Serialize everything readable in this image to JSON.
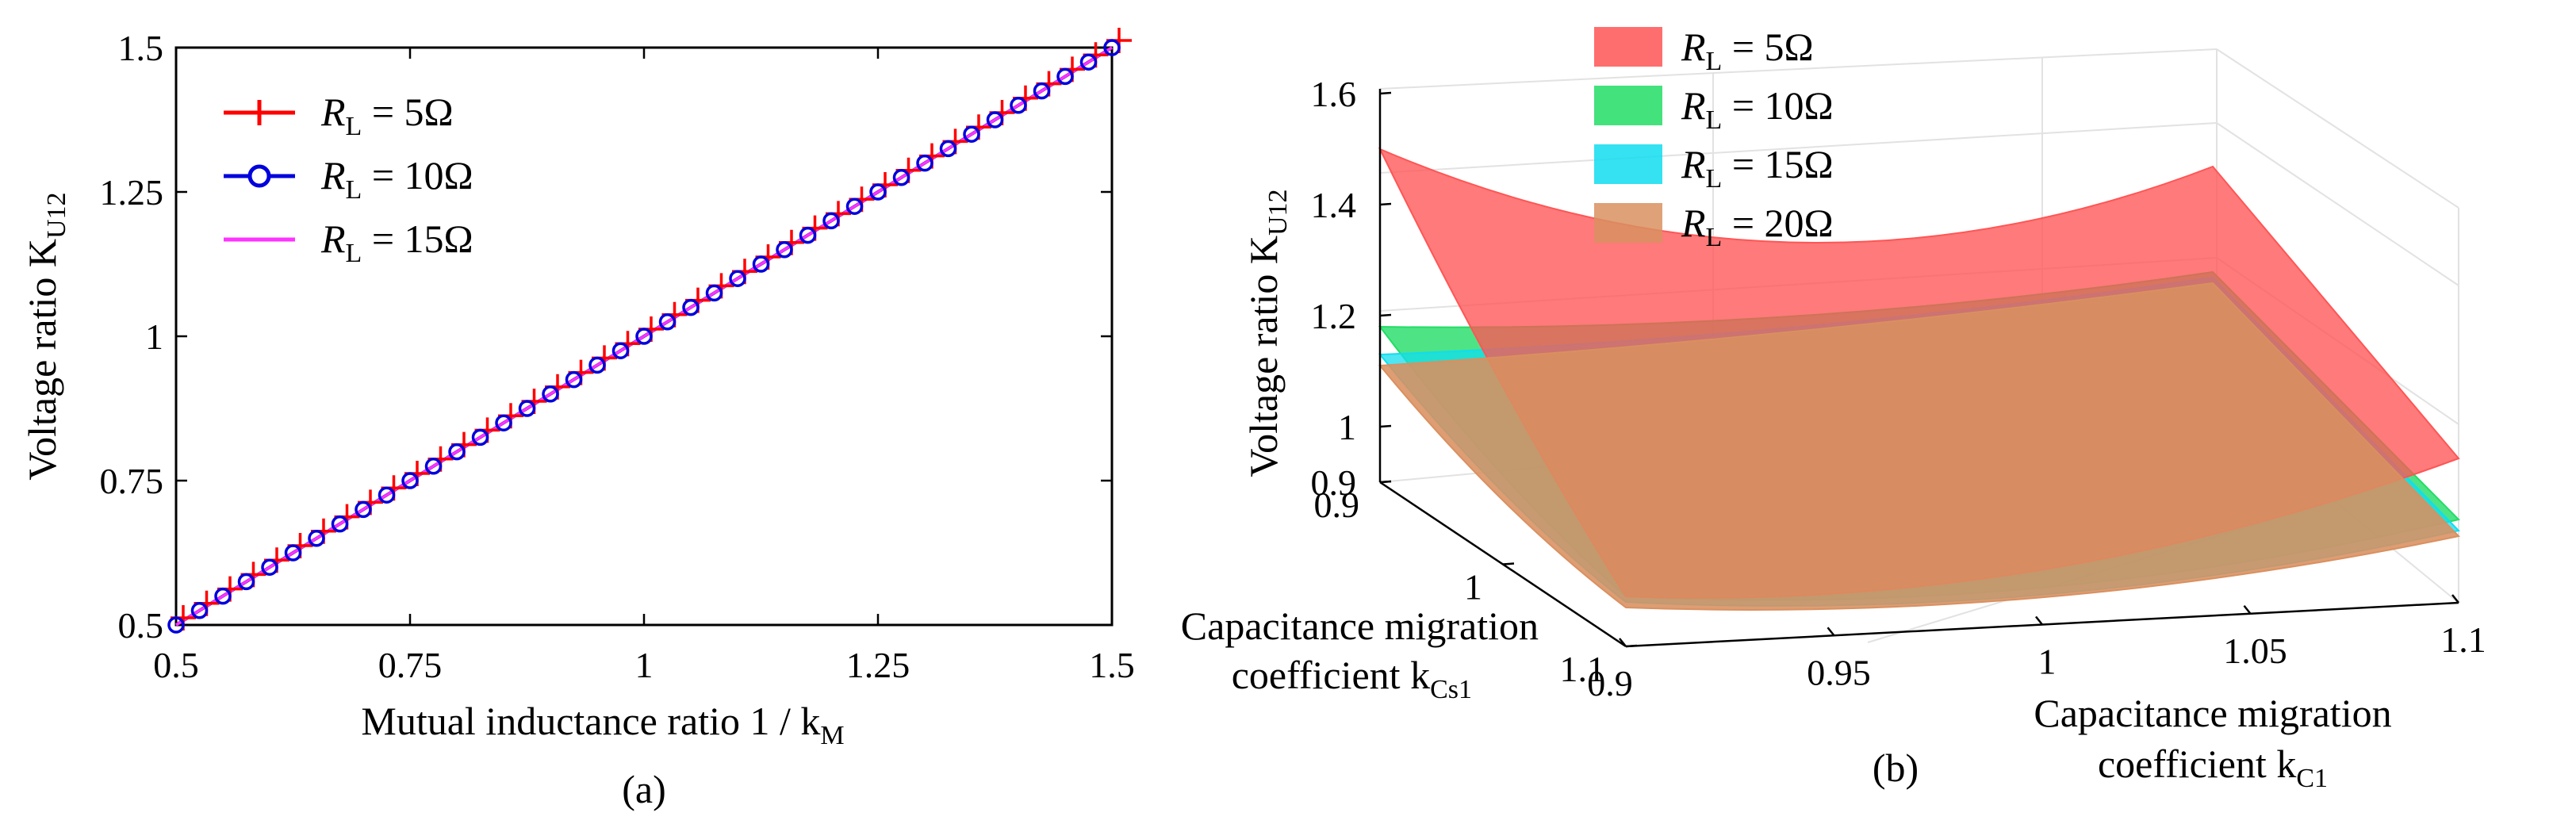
{
  "chart_data": [
    {
      "id": "a",
      "type": "line",
      "caption": "(a)",
      "xlabel": "Mutual inductance ratio  1 / k",
      "xlabel_sub": "M",
      "ylabel": "Voltage ratio  K",
      "ylabel_sub": "U12",
      "xlim": [
        0.5,
        1.5
      ],
      "ylim": [
        0.5,
        1.5
      ],
      "xticks": [
        0.5,
        0.75,
        1,
        1.25,
        1.5
      ],
      "xtick_labels": [
        "0.5",
        "0.75",
        "1",
        "1.25",
        "1.5"
      ],
      "yticks": [
        0.5,
        0.75,
        1,
        1.25,
        1.5
      ],
      "ytick_labels": [
        "0.5",
        "0.75",
        "1",
        "1.25",
        "1.5"
      ],
      "x": [
        0.5,
        0.525,
        0.55,
        0.575,
        0.6,
        0.625,
        0.65,
        0.675,
        0.7,
        0.725,
        0.75,
        0.775,
        0.8,
        0.825,
        0.85,
        0.875,
        0.9,
        0.925,
        0.95,
        0.975,
        1.0,
        1.025,
        1.05,
        1.075,
        1.1,
        1.125,
        1.15,
        1.175,
        1.2,
        1.225,
        1.25,
        1.275,
        1.3,
        1.325,
        1.35,
        1.375,
        1.4,
        1.425,
        1.45,
        1.475,
        1.5
      ],
      "series": [
        {
          "name": "R_L = 5Ω",
          "label_main": "R",
          "label_sub": "L",
          "label_value": " = 5Ω",
          "color": "#ff0000",
          "marker": "plus",
          "values": [
            0.5,
            0.525,
            0.55,
            0.575,
            0.6,
            0.625,
            0.65,
            0.675,
            0.7,
            0.725,
            0.75,
            0.775,
            0.8,
            0.825,
            0.85,
            0.875,
            0.9,
            0.925,
            0.95,
            0.975,
            1.0,
            1.025,
            1.05,
            1.075,
            1.1,
            1.125,
            1.15,
            1.175,
            1.2,
            1.225,
            1.25,
            1.275,
            1.3,
            1.325,
            1.35,
            1.375,
            1.4,
            1.425,
            1.45,
            1.475,
            1.5
          ]
        },
        {
          "name": "R_L = 10Ω",
          "label_main": "R",
          "label_sub": "L",
          "label_value": " = 10Ω",
          "color": "#0000dd",
          "marker": "circle",
          "values": [
            0.5,
            0.525,
            0.55,
            0.575,
            0.6,
            0.625,
            0.65,
            0.675,
            0.7,
            0.725,
            0.75,
            0.775,
            0.8,
            0.825,
            0.85,
            0.875,
            0.9,
            0.925,
            0.95,
            0.975,
            1.0,
            1.025,
            1.05,
            1.075,
            1.1,
            1.125,
            1.15,
            1.175,
            1.2,
            1.225,
            1.25,
            1.275,
            1.3,
            1.325,
            1.35,
            1.375,
            1.4,
            1.425,
            1.45,
            1.475,
            1.5
          ]
        },
        {
          "name": "R_L = 15Ω",
          "label_main": "R",
          "label_sub": "L",
          "label_value": " = 15Ω",
          "color": "#ff33ff",
          "marker": "none",
          "values": [
            0.5,
            0.525,
            0.55,
            0.575,
            0.6,
            0.625,
            0.65,
            0.675,
            0.7,
            0.725,
            0.75,
            0.775,
            0.8,
            0.825,
            0.85,
            0.875,
            0.9,
            0.925,
            0.95,
            0.975,
            1.0,
            1.025,
            1.05,
            1.075,
            1.1,
            1.125,
            1.15,
            1.175,
            1.2,
            1.225,
            1.25,
            1.275,
            1.3,
            1.325,
            1.35,
            1.375,
            1.4,
            1.425,
            1.45,
            1.475,
            1.5
          ]
        }
      ],
      "legend": "top-left"
    },
    {
      "id": "b",
      "type": "surface",
      "caption": "(b)",
      "zlabel": "Voltage ratio  K",
      "zlabel_sub": "U12",
      "x1label_line1": "Capacitance migration",
      "x1label_line2": "coefficient k",
      "x1label_sub": "Cs1",
      "x2label_line1": "Capacitance migration",
      "x2label_line2": "coefficient k",
      "x2label_sub": "C1",
      "zticks": [
        0.9,
        1,
        1.2,
        1.4,
        1.6
      ],
      "ztick_labels": [
        "0.9",
        "1",
        "1.2",
        "1.4",
        "1.6"
      ],
      "kCs1_ticks": [
        0.9,
        1,
        1.1
      ],
      "kCs1_tick_labels": [
        "0.9",
        "1",
        "1.1"
      ],
      "kC1_ticks": [
        0.9,
        0.95,
        1,
        1.05,
        1.1
      ],
      "kC1_tick_labels": [
        "0.9",
        "0.95",
        "1",
        "1.05",
        "1.1"
      ],
      "surfaces": [
        {
          "name": "R_L = 5Ω",
          "label_main": "R",
          "label_sub": "L",
          "label_value": " = 5Ω",
          "color": "#ff5555",
          "corner_values": {
            "kCs1_0.9_kC1_0.9": 1.5,
            "kCs1_1.1_kC1_0.9": 0.99,
            "kCs1_1.1_kC1_1.1": 1.16,
            "kCs1_0.9_kC1_1.1": 1.39
          },
          "center_value": 0.99
        },
        {
          "name": "R_L = 10Ω",
          "label_main": "R",
          "label_sub": "L",
          "label_value": " = 10Ω",
          "color": "#22dd66",
          "corner_values": {
            "kCs1_0.9_kC1_0.9": 1.18,
            "kCs1_1.1_kC1_0.9": 0.99,
            "kCs1_1.1_kC1_1.1": 1.05,
            "kCs1_0.9_kC1_1.1": 1.2
          },
          "center_value": 0.98
        },
        {
          "name": "R_L = 15Ω",
          "label_main": "R",
          "label_sub": "L",
          "label_value": " = 15Ω",
          "color": "#11ddee",
          "corner_values": {
            "kCs1_0.9_kC1_0.9": 1.13,
            "kCs1_1.1_kC1_0.9": 0.98,
            "kCs1_1.1_kC1_1.1": 1.03,
            "kCs1_0.9_kC1_1.1": 1.19
          },
          "center_value": 0.97
        },
        {
          "name": "R_L = 20Ω",
          "label_main": "R",
          "label_sub": "L",
          "label_value": " = 20Ω",
          "color": "#d99060",
          "corner_values": {
            "kCs1_0.9_kC1_0.9": 1.11,
            "kCs1_1.1_kC1_0.9": 0.97,
            "kCs1_1.1_kC1_1.1": 1.02,
            "kCs1_0.9_kC1_1.1": 1.18
          },
          "center_value": 0.97
        }
      ],
      "legend": "top-center"
    }
  ]
}
